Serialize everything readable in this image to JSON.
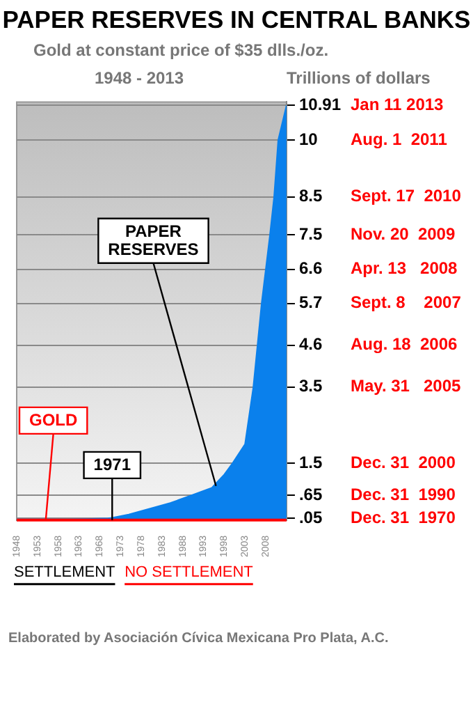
{
  "chart_data": {
    "type": "area",
    "title": "PAPER RESERVES IN CENTRAL BANKS",
    "subtitle": "Gold at constant price of $35 dlls./oz.",
    "ylabel": "Trillions of dollars",
    "x": [
      1948,
      1955,
      1960,
      1965,
      1970,
      1971,
      1975,
      1980,
      1985,
      1990,
      1995,
      1998,
      2000,
      2003,
      2005,
      2006,
      2007,
      2008,
      2009,
      2010,
      2011,
      2013
    ],
    "series": [
      {
        "color": "#0a80ec",
        "values": [
          0.02,
          0.02,
          0.02,
          0.03,
          0.05,
          0.06,
          0.15,
          0.3,
          0.45,
          0.65,
          0.85,
          1.2,
          1.5,
          2.0,
          3.5,
          4.6,
          5.7,
          6.6,
          7.5,
          8.5,
          10,
          10.91
        ]
      }
    ],
    "xlim": [
      1948,
      2013
    ],
    "xticks": [
      1948,
      1953,
      1958,
      1963,
      1968,
      1973,
      1978,
      1983,
      1988,
      1993,
      1998,
      2003,
      2008
    ],
    "ylim": [
      0,
      11
    ],
    "yticks": [
      {
        "value": 0.05,
        "label": ".05"
      },
      {
        "value": 0.65,
        "label": ".65"
      },
      1.5,
      3.5,
      4.6,
      5.7,
      6.6,
      7.5,
      8.5,
      10,
      10.91
    ],
    "grid": "y",
    "legend": false,
    "annotations": [
      "1948 - 2013",
      "SETTLEMENT",
      "NO SETTLEMENT",
      "Elaborated by Asociación Cívica Mexicana Pro Plata, A.C.",
      "Jan 11 2013",
      "Aug. 1  2011",
      "Sept. 17  2010",
      "Nov. 20  2009",
      "Apr. 13   2008",
      "Sept. 8    2007",
      "Aug. 18  2006",
      "May. 31   2005",
      "Dec. 31  2000",
      "Dec. 31  1990",
      "Dec. 31  1970",
      {
        "text": "GOLD",
        "x": 1955,
        "y": 0
      },
      {
        "text": "1971",
        "x": 1971,
        "y": 0
      },
      {
        "text": "PAPER RESERVES",
        "x": 1996,
        "y": 0.9
      }
    ]
  }
}
